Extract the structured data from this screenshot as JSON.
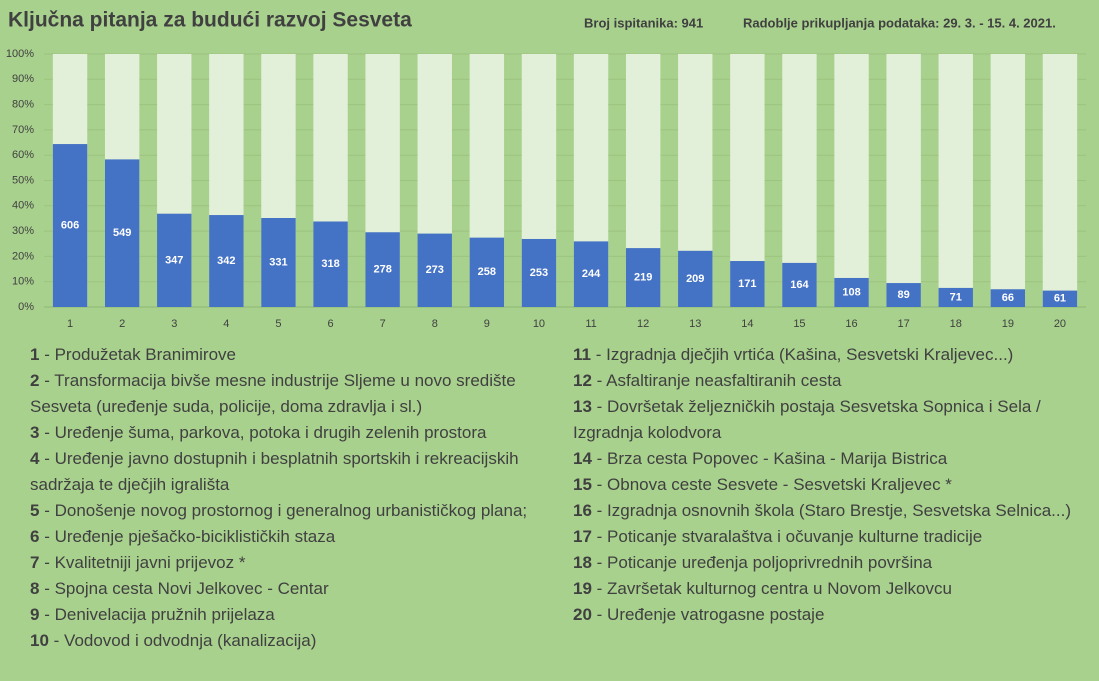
{
  "chart_data": {
    "type": "bar",
    "title": "Ključna pitanja za budući razvoj Sesveta",
    "subtitle_left": "Broj ispitanika: 941",
    "subtitle_right": "Radoblje prikupljanja podataka: 29. 3. - 15. 4. 2021.",
    "categories": [
      "1",
      "2",
      "3",
      "4",
      "5",
      "6",
      "7",
      "8",
      "9",
      "10",
      "11",
      "12",
      "13",
      "14",
      "15",
      "16",
      "17",
      "18",
      "19",
      "20"
    ],
    "values": [
      606,
      549,
      347,
      342,
      331,
      318,
      278,
      273,
      258,
      253,
      244,
      219,
      209,
      171,
      164,
      108,
      89,
      71,
      66,
      61
    ],
    "color": "#4472c4",
    "background_color": "#e2efd9",
    "ylim": [
      0,
      941
    ],
    "yticks": [
      {
        "value": 0,
        "label": "0%"
      },
      {
        "value": 94.1,
        "label": "10%"
      },
      {
        "value": 188.2,
        "label": "20%"
      },
      {
        "value": 282.3,
        "label": "30%"
      },
      {
        "value": 376.4,
        "label": "40%"
      },
      {
        "value": 470.5,
        "label": "50%"
      },
      {
        "value": 564.6,
        "label": "60%"
      },
      {
        "value": 658.7,
        "label": "70%"
      },
      {
        "value": 752.8,
        "label": "80%"
      },
      {
        "value": 846.9,
        "label": "90%"
      },
      {
        "value": 941,
        "label": "100%"
      }
    ],
    "grid": true,
    "descriptions": [
      "- Produžetak  Branimirove",
      "- Transformacija bivše mesne industrije Sljeme u novo središte Sesveta (uređenje suda, policije, doma zdravlja i sl.)",
      "- Uređenje šuma, parkova, potoka i drugih zelenih prostora",
      "- Uređenje javno dostupnih i besplatnih sportskih i rekreacijskih sadržaja te dječjih igrališta",
      "- Donošenje novog prostornog i generalnog urbanističkog plana;",
      "- Uređenje pješačko-biciklističkih staza",
      "- Kvalitetniji javni prijevoz *",
      "- Spojna cesta Novi Jelkovec - Centar",
      "- Denivelacija pružnih prijelaza",
      "- Vodovod i odvodnja (kanalizacija)",
      "- Izgradnja dječjih vrtića (Kašina, Sesvetski Kraljevec...)",
      "- Asfaltiranje neasfaltiranih cesta",
      "- Dovršetak željezničkih postaja Sesvetska Sopnica i Sela / Izgradnja kolodvora",
      "- Brza cesta Popovec - Kašina - Marija Bistrica",
      "- Obnova ceste Sesvete - Sesvetski Kraljevec *",
      "- Izgradnja osnovnih škola (Staro Brestje, Sesvetska Selnica...)",
      "- Poticanje stvaralaštva i očuvanje kulturne tradicije",
      "- Poticanje uređenja poljoprivrednih površina",
      "- Završetak kulturnog centra u Novom Jelkovcu",
      "- Uređenje vatrogasne postaje"
    ]
  }
}
